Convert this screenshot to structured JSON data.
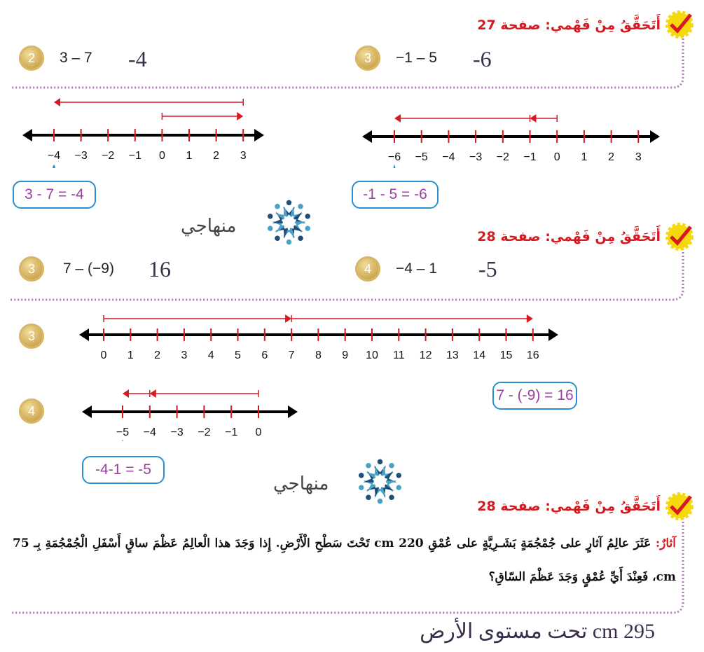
{
  "sections": [
    {
      "title": "أَتَحَقَّقُ مِنْ فَهْمي: صفحة 27"
    },
    {
      "title": "أَتَحَقَّقُ مِنْ فَهْمي: صفحة 28"
    },
    {
      "title": "أَتَحَقَّقُ مِنْ فَهْمي: صفحة 28"
    }
  ],
  "problems": {
    "p27_2": {
      "num": "2",
      "expr": "3 – 7",
      "answer": "-4"
    },
    "p27_3": {
      "num": "3",
      "expr": "−1 – 5",
      "answer": "-6"
    },
    "p28_3": {
      "num": "3",
      "expr": "7 – (−9)",
      "answer": "16"
    },
    "p28_4": {
      "num": "4",
      "expr": "−4 – 1",
      "answer": "-5"
    }
  },
  "number_lines": {
    "nl1": {
      "ticks": [
        "−4",
        "−3",
        "−2",
        "−1",
        "0",
        "1",
        "2",
        "3"
      ],
      "callout": "3 - 7 = -4"
    },
    "nl2": {
      "ticks": [
        "−6",
        "−5",
        "−4",
        "−3",
        "−2",
        "−1",
        "0",
        "1",
        "2",
        "3"
      ],
      "callout": "-1 - 5 = -6"
    },
    "nl3": {
      "label": "3",
      "ticks": [
        "0",
        "1",
        "2",
        "3",
        "4",
        "5",
        "6",
        "7",
        "8",
        "9",
        "10",
        "11",
        "12",
        "13",
        "14",
        "15",
        "16"
      ],
      "callout": "7 - (-9) = 16"
    },
    "nl4": {
      "label": "4",
      "ticks": [
        "−5",
        "−4",
        "−3",
        "−2",
        "−1",
        "0"
      ],
      "callout": "-4-1 = -5"
    }
  },
  "logo": {
    "text": "منهاجي"
  },
  "word_problem": {
    "lead": "آثارٌ:",
    "text": "عَثَرَ عالِمُ آثارٍ على جُمْجُمَةٍ بَشَـرِيَّةٍ على عُمْقِ 220 cm تَحْتَ سَطْحِ الْأَرْضِ. إِذا وَجَدَ هذا الْعالِمُ عَظْمَ ساقٍ أَسْفَلِ الْجُمْجُمَةِ بِـ 75 cm، فَعِنْدَ أَيِّ عُمْقٍ وَجَدَ عَظْمَ السّاقِ؟",
    "answer": "295 cm تحت مستوى الأرض"
  },
  "colors": {
    "title_red": "#d71920",
    "arrow_red": "#d71920",
    "axis": "#000000",
    "callout_border": "#2a8fd0",
    "callout_text": "#9b3fa0",
    "divider": "#b07ab8",
    "answer": "#3a2f4a"
  }
}
